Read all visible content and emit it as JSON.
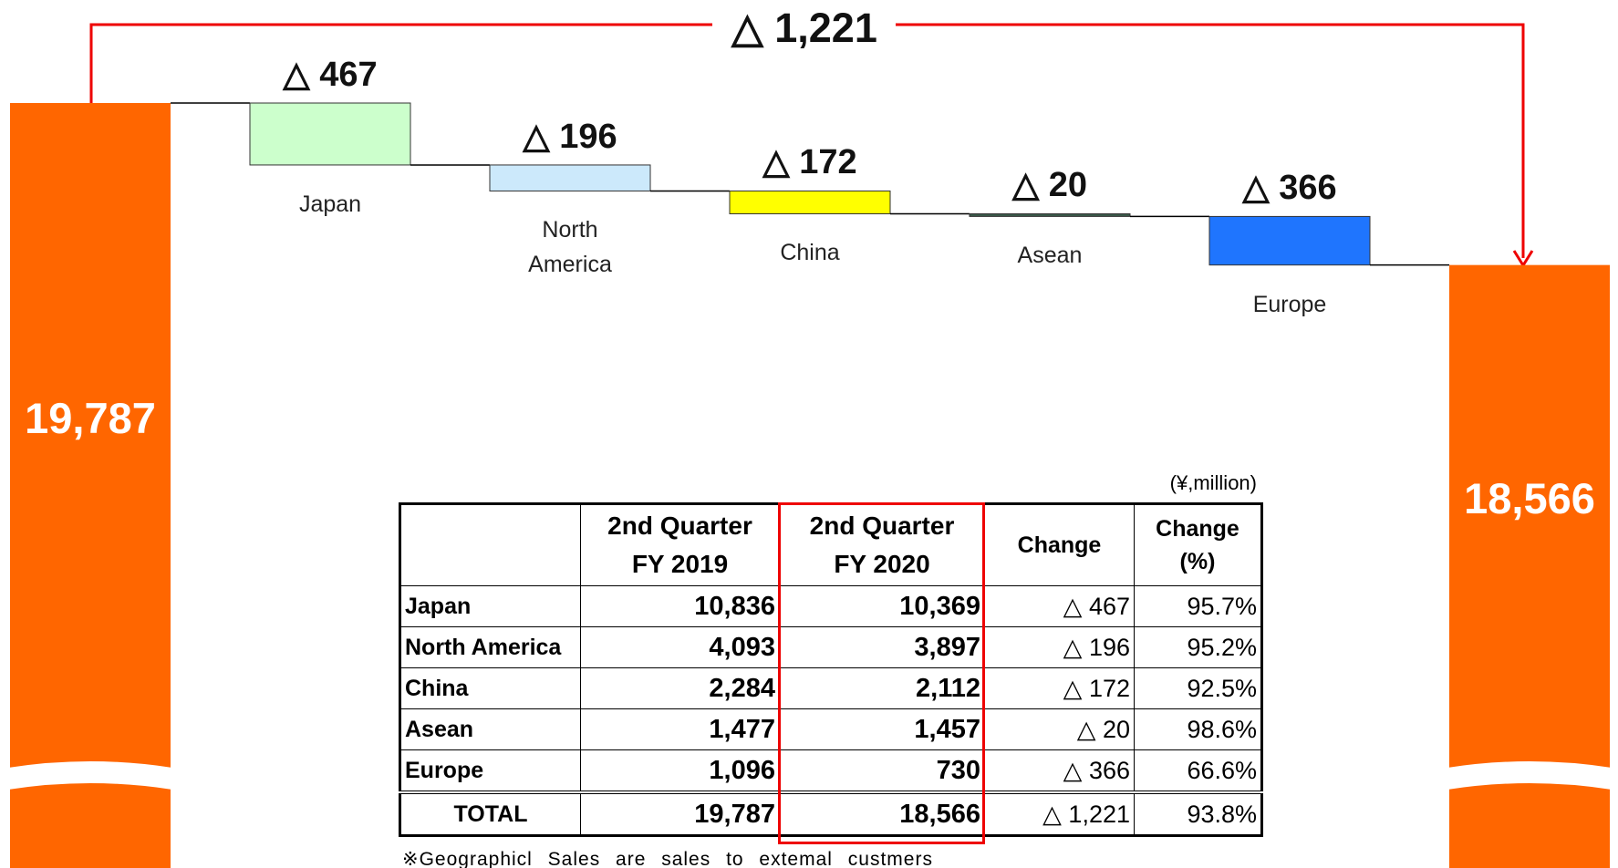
{
  "chart_data": {
    "type": "waterfall",
    "categories": [
      null,
      "Japan",
      "North America",
      "China",
      "Asean",
      "Europe",
      null
    ],
    "values": [
      19787,
      -467,
      -196,
      -172,
      -20,
      -366,
      18566
    ],
    "value_labels": [
      "19,787",
      "△ 467",
      "△ 196",
      "△ 172",
      "△ 20",
      "△ 366",
      "18,566"
    ],
    "colors": [
      "#ff6600",
      "#ccffcc",
      "#cce9fb",
      "#ffff00",
      "#3b5a4a",
      "#1f75fe",
      "#ff6600"
    ],
    "annotation": "△ 1,221"
  },
  "table": {
    "unit": "(¥,million)",
    "header": [
      [
        "2nd Quarter",
        "FY 2019"
      ],
      [
        "2nd Quarter",
        "FY 2020"
      ],
      [
        "Change"
      ],
      [
        "Change",
        "(%)"
      ]
    ],
    "rows": [
      [
        "Japan",
        "10,836",
        "10,369",
        "△ 467",
        "95.7%"
      ],
      [
        "North America",
        "4,093",
        "3,897",
        "△ 196",
        "95.2%"
      ],
      [
        "China",
        "2,284",
        "2,112",
        "△ 172",
        "92.5%"
      ],
      [
        "Asean",
        "1,477",
        "1,457",
        "△ 20",
        "98.6%"
      ],
      [
        "Europe",
        "1,096",
        "730",
        "△ 366",
        "66.6%"
      ]
    ],
    "total": [
      "TOTAL",
      "19,787",
      "18,566",
      "△ 1,221",
      "93.8%"
    ],
    "footnote": "※Geographicl Sales are sales to extemal custmers"
  }
}
